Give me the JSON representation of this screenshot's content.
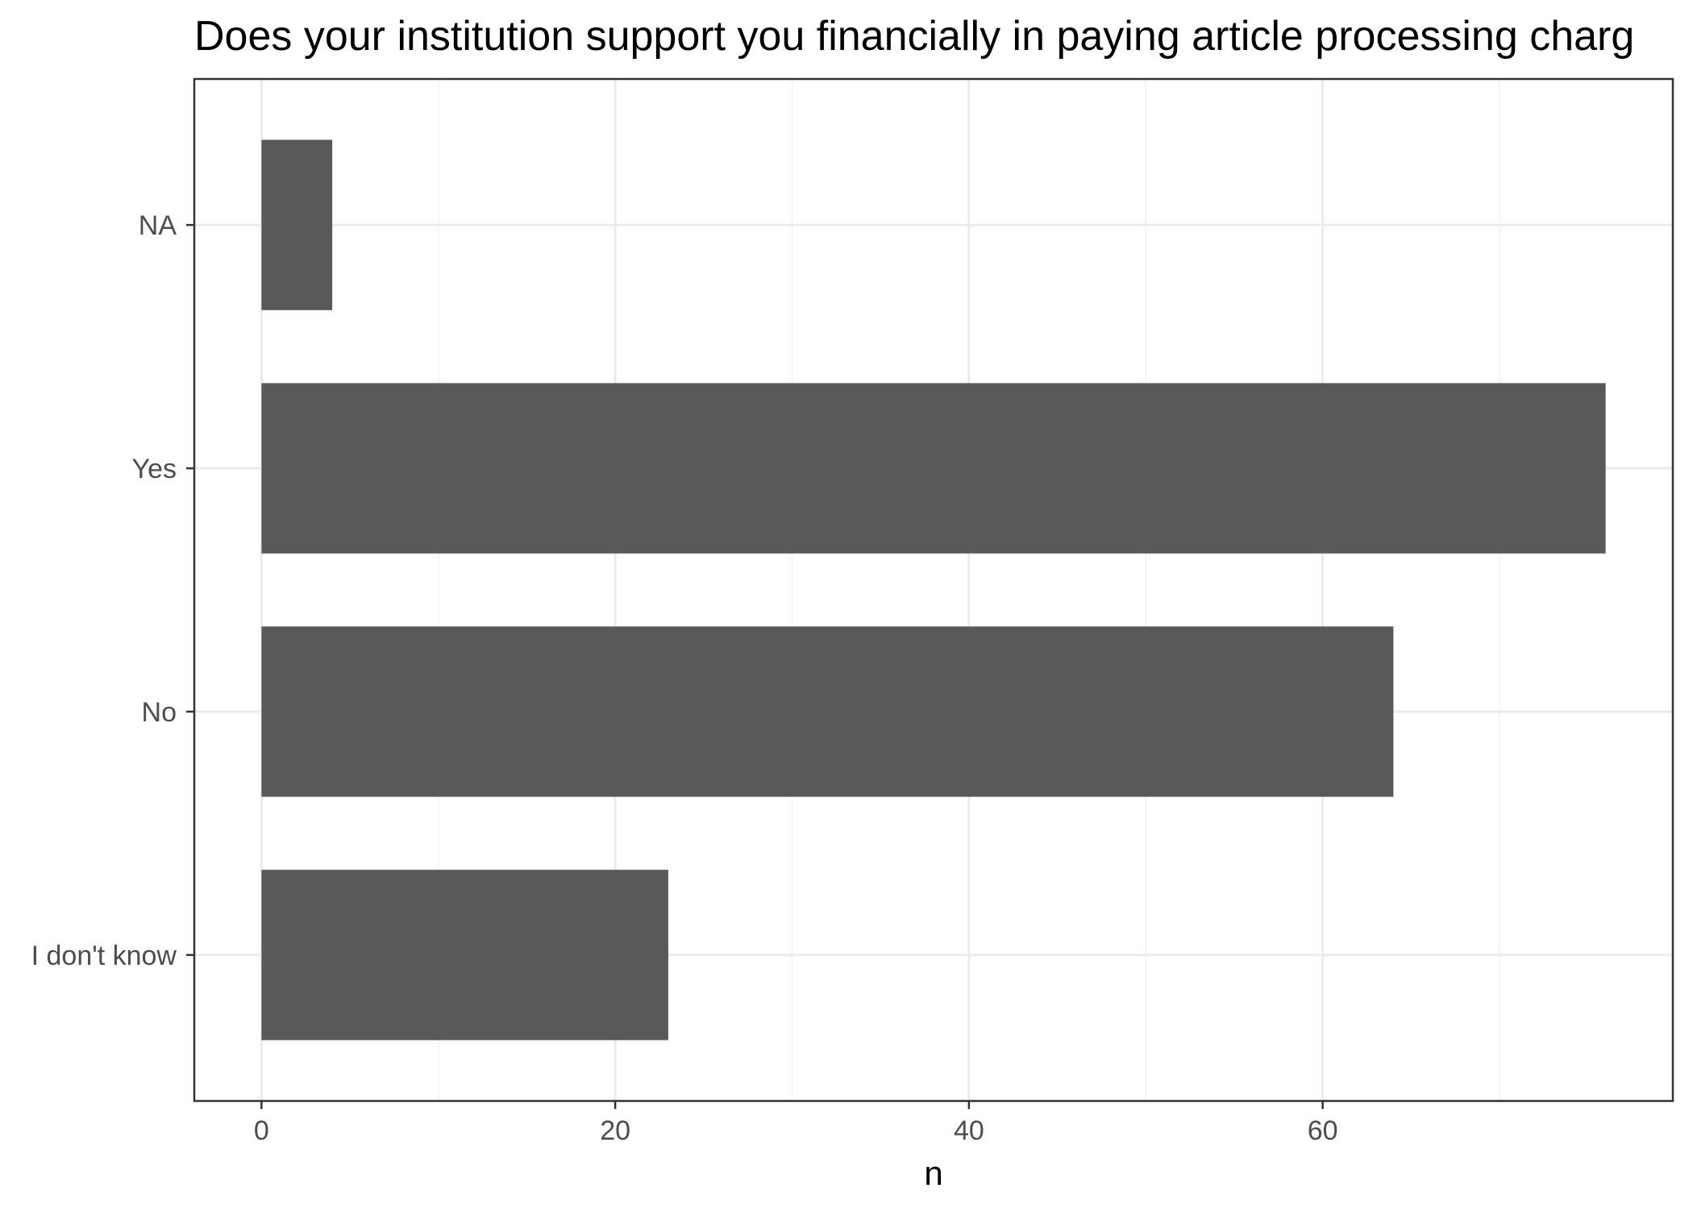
{
  "chart_data": {
    "type": "bar",
    "orientation": "horizontal",
    "title": "Does your institution support you financially in paying article processing charg",
    "xlabel": "n",
    "ylabel": "",
    "categories": [
      "I don't know",
      "No",
      "Yes",
      "NA"
    ],
    "values": [
      23,
      64,
      76,
      4
    ],
    "xlim": [
      -3.8,
      79.8
    ],
    "x_ticks": [
      0,
      20,
      40,
      60
    ],
    "x_minor_ticks": [
      10,
      30,
      50,
      70
    ],
    "grid": true,
    "legend": "none",
    "bar_color": "#595959"
  },
  "colors": {
    "background": "#ffffff",
    "panel_border": "#333333",
    "grid_major": "#ebebeb",
    "grid_minor": "#f2f2f2",
    "tick_label": "#4d4d4d"
  }
}
